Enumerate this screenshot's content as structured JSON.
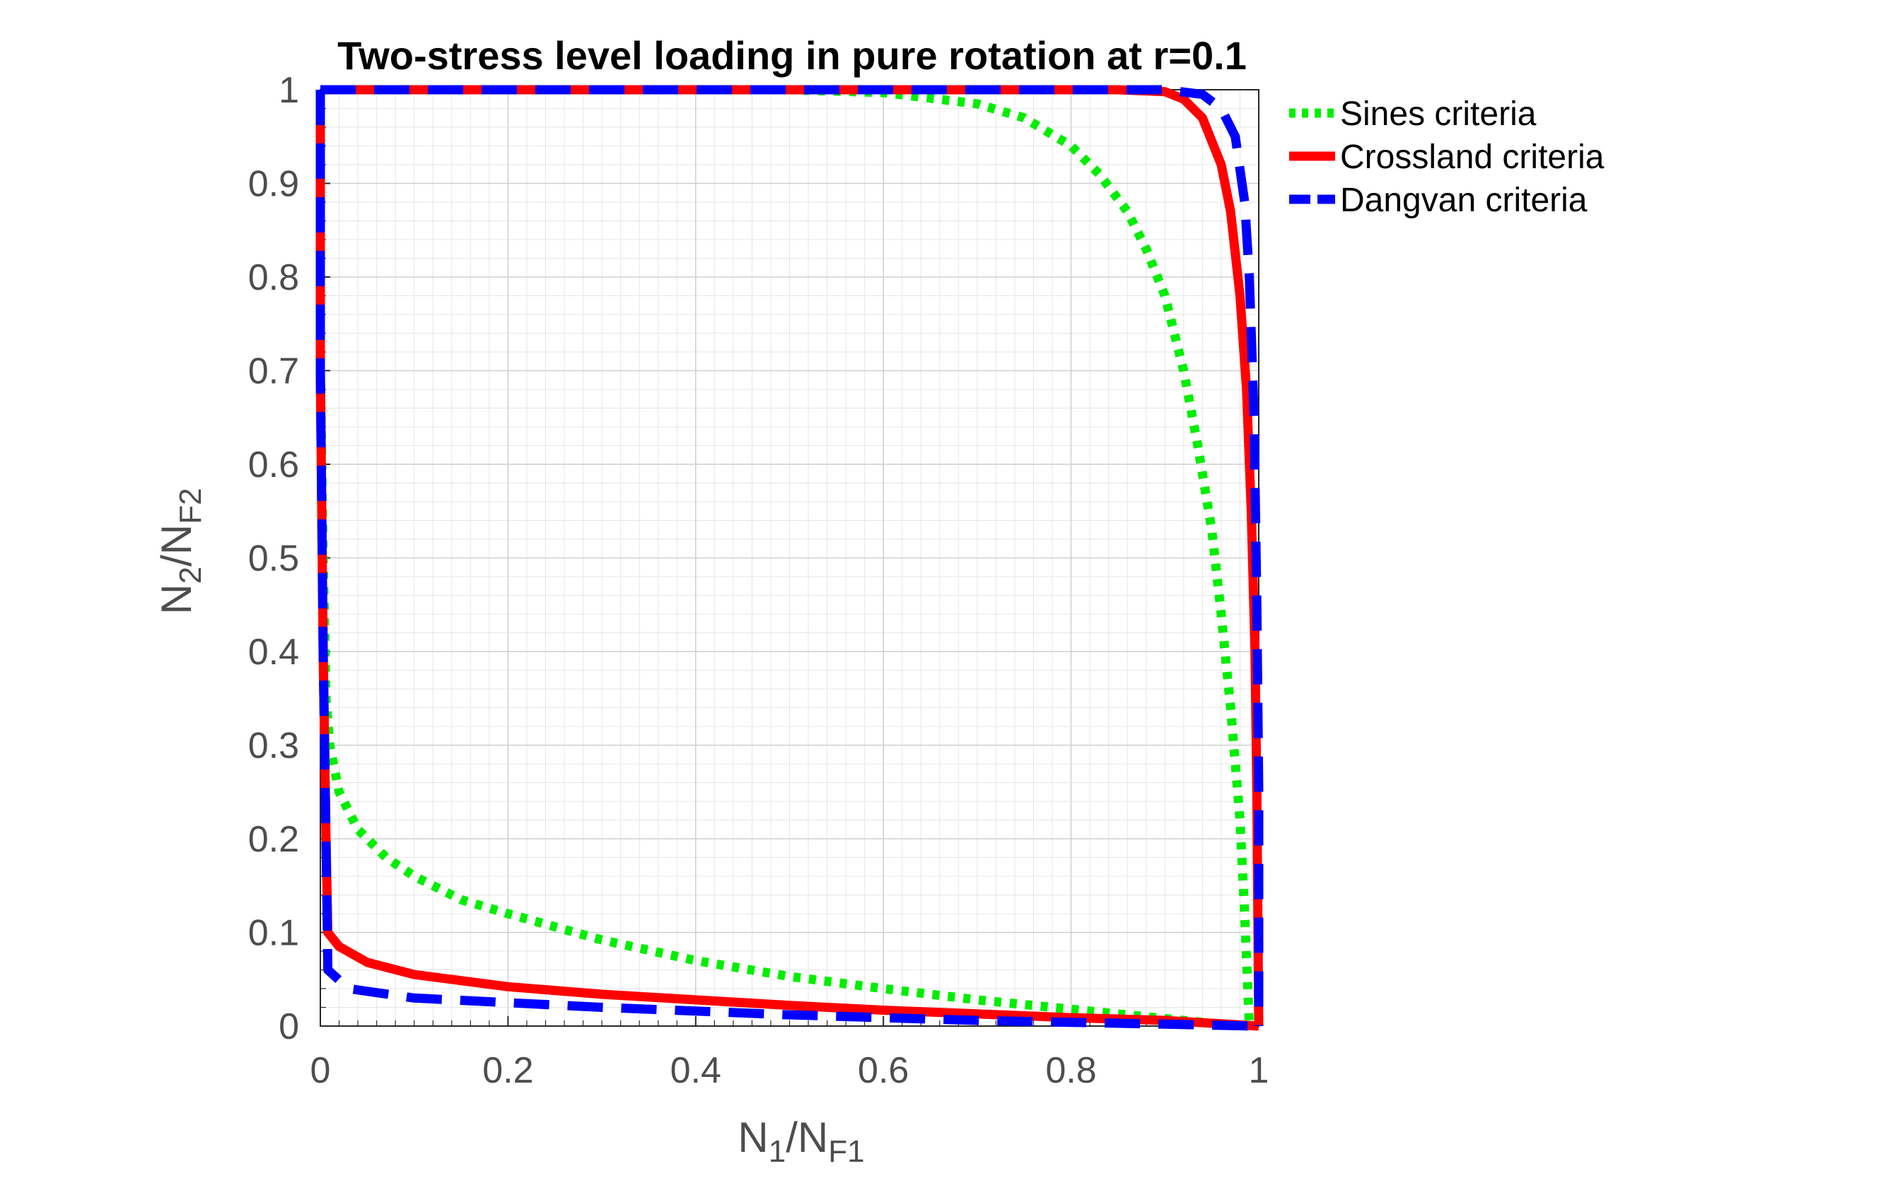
{
  "chart_data": {
    "type": "line",
    "title": "Two-stress level loading in pure rotation at r=0.1",
    "xlabel": {
      "main": "N",
      "sub1": "1",
      "sep": "/N",
      "sub2": "F1"
    },
    "ylabel": {
      "main": "N",
      "sub1": "2",
      "sep": "/N",
      "sub2": "F2"
    },
    "xlim": [
      0,
      1
    ],
    "ylim": [
      0,
      1
    ],
    "x_ticks": [
      0,
      0.2,
      0.4,
      0.6,
      0.8,
      1
    ],
    "x_tick_labels": [
      "0",
      "0.2",
      "0.4",
      "0.6",
      "0.8",
      "1"
    ],
    "y_ticks": [
      0,
      0.1,
      0.2,
      0.3,
      0.4,
      0.5,
      0.6,
      0.7,
      0.8,
      0.9,
      1
    ],
    "y_tick_labels": [
      "0",
      "0.1",
      "0.2",
      "0.3",
      "0.4",
      "0.5",
      "0.6",
      "0.7",
      "0.8",
      "0.9",
      "1"
    ],
    "grid": true,
    "minor_grid": true,
    "legend_position": "outside-top-right",
    "series": [
      {
        "name": "Sines criteria",
        "color": "#00ee00",
        "style": "dotted",
        "points": [
          [
            0.0,
            1.0
          ],
          [
            0.0,
            0.7
          ],
          [
            0.003,
            0.5
          ],
          [
            0.006,
            0.35
          ],
          [
            0.01,
            0.3
          ],
          [
            0.02,
            0.25
          ],
          [
            0.04,
            0.21
          ],
          [
            0.07,
            0.18
          ],
          [
            0.1,
            0.16
          ],
          [
            0.15,
            0.135
          ],
          [
            0.2,
            0.12
          ],
          [
            0.3,
            0.092
          ],
          [
            0.4,
            0.07
          ],
          [
            0.5,
            0.053
          ],
          [
            0.6,
            0.04
          ],
          [
            0.7,
            0.028
          ],
          [
            0.8,
            0.018
          ],
          [
            0.9,
            0.008
          ],
          [
            0.95,
            0.003
          ],
          [
            0.99,
            0.0
          ]
        ],
        "points_upper": [
          [
            0.0,
            1.0
          ],
          [
            0.5,
            1.0
          ],
          [
            0.6,
            0.997
          ],
          [
            0.7,
            0.985
          ],
          [
            0.75,
            0.97
          ],
          [
            0.8,
            0.94
          ],
          [
            0.83,
            0.91
          ],
          [
            0.86,
            0.87
          ],
          [
            0.88,
            0.83
          ],
          [
            0.9,
            0.78
          ],
          [
            0.92,
            0.7
          ],
          [
            0.935,
            0.62
          ],
          [
            0.95,
            0.53
          ],
          [
            0.96,
            0.44
          ],
          [
            0.97,
            0.34
          ],
          [
            0.98,
            0.22
          ],
          [
            0.985,
            0.12
          ],
          [
            0.99,
            0.0
          ]
        ]
      },
      {
        "name": "Crossland criteria",
        "color": "#ff0000",
        "style": "solid",
        "points": [
          [
            0.0,
            1.0
          ],
          [
            0.0,
            0.7
          ],
          [
            0.003,
            0.4
          ],
          [
            0.006,
            0.2
          ],
          [
            0.008,
            0.1
          ],
          [
            0.02,
            0.085
          ],
          [
            0.05,
            0.068
          ],
          [
            0.1,
            0.055
          ],
          [
            0.2,
            0.042
          ],
          [
            0.3,
            0.034
          ],
          [
            0.4,
            0.028
          ],
          [
            0.5,
            0.022
          ],
          [
            0.6,
            0.017
          ],
          [
            0.7,
            0.013
          ],
          [
            0.8,
            0.009
          ],
          [
            0.9,
            0.006
          ],
          [
            0.95,
            0.003
          ],
          [
            1.0,
            0.0
          ]
        ],
        "points_upper": [
          [
            0.0,
            1.0
          ],
          [
            0.85,
            1.0
          ],
          [
            0.9,
            0.998
          ],
          [
            0.92,
            0.99
          ],
          [
            0.94,
            0.97
          ],
          [
            0.96,
            0.92
          ],
          [
            0.97,
            0.87
          ],
          [
            0.98,
            0.78
          ],
          [
            0.987,
            0.68
          ],
          [
            0.992,
            0.55
          ],
          [
            0.996,
            0.4
          ],
          [
            0.998,
            0.25
          ],
          [
            1.0,
            0.0
          ]
        ]
      },
      {
        "name": "Dangvan criteria",
        "color": "#0000ff",
        "style": "dashed",
        "points": [
          [
            0.0,
            1.0
          ],
          [
            0.0,
            0.7
          ],
          [
            0.003,
            0.4
          ],
          [
            0.006,
            0.2
          ],
          [
            0.008,
            0.06
          ],
          [
            0.03,
            0.04
          ],
          [
            0.1,
            0.03
          ],
          [
            0.2,
            0.025
          ],
          [
            0.3,
            0.02
          ],
          [
            0.4,
            0.016
          ],
          [
            0.5,
            0.012
          ],
          [
            0.6,
            0.009
          ],
          [
            0.7,
            0.006
          ],
          [
            0.8,
            0.004
          ],
          [
            0.9,
            0.002
          ],
          [
            0.95,
            0.001
          ],
          [
            1.0,
            0.0
          ]
        ],
        "points_upper": [
          [
            0.0,
            1.0
          ],
          [
            0.9,
            1.0
          ],
          [
            0.94,
            0.995
          ],
          [
            0.96,
            0.98
          ],
          [
            0.975,
            0.95
          ],
          [
            0.985,
            0.88
          ],
          [
            0.99,
            0.8
          ],
          [
            0.995,
            0.65
          ],
          [
            0.998,
            0.45
          ],
          [
            1.0,
            0.25
          ],
          [
            1.0,
            0.0
          ]
        ]
      }
    ]
  }
}
